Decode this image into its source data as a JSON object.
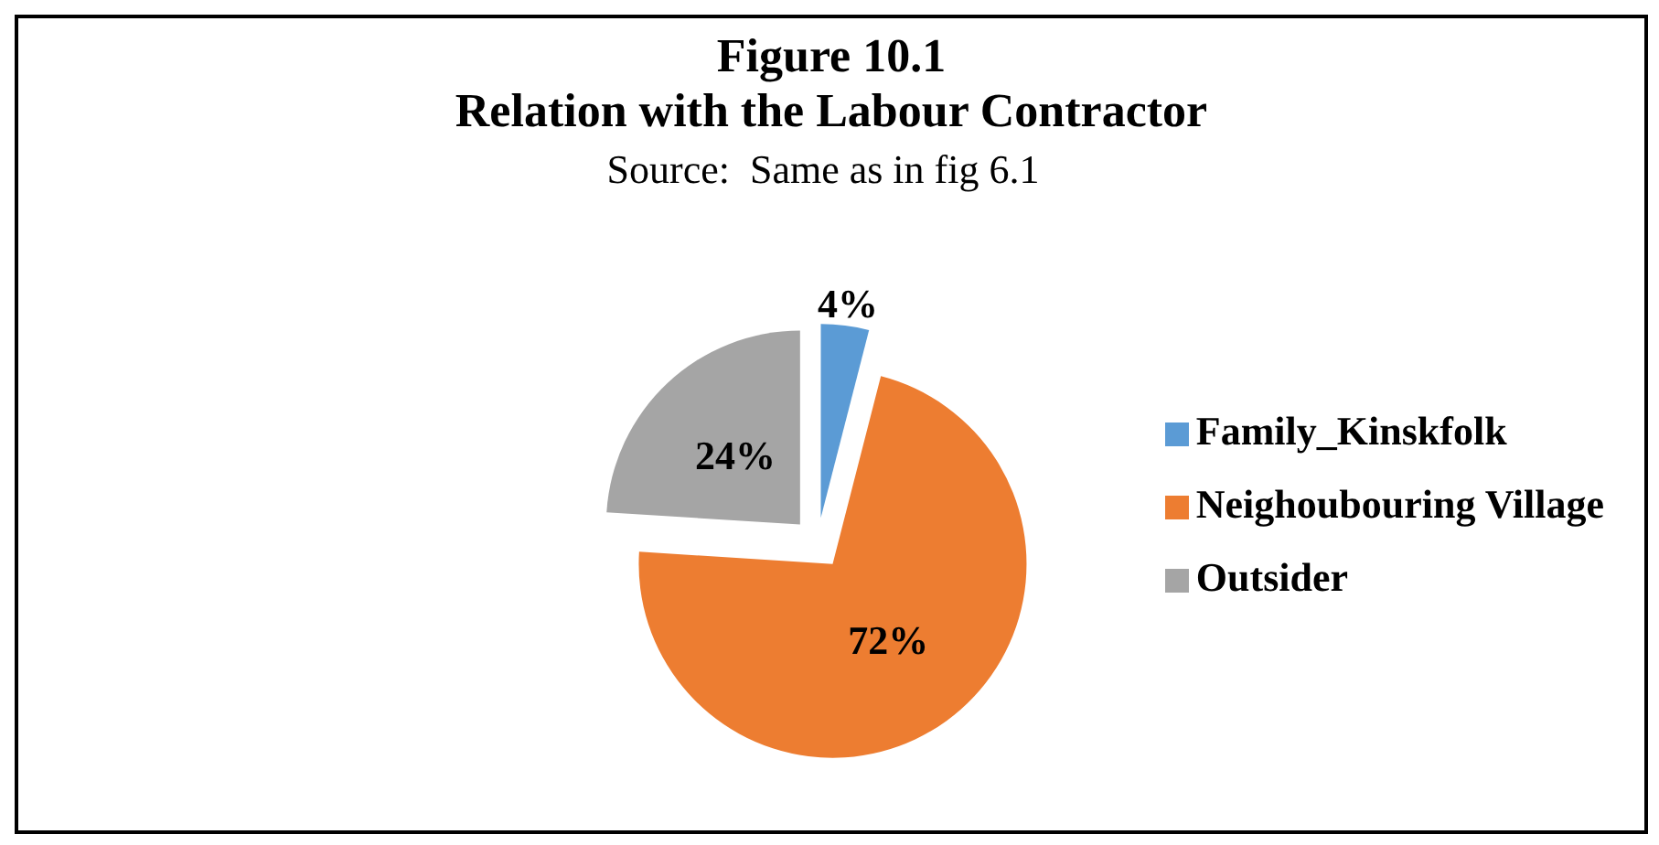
{
  "chart_data": {
    "type": "pie",
    "title": "Figure 10.1",
    "subtitle": "Relation with the Labour Contractor",
    "annotations": [
      "Source:  Same as in fig 6.1"
    ],
    "categories": [
      "Family_Kinskfolk",
      "Neighoubouring Village",
      "Outsider"
    ],
    "values": [
      4,
      72,
      24
    ],
    "colors": [
      "#5b9bd5",
      "#ed7d31",
      "#a5a5a5"
    ],
    "value_labels": [
      "4%",
      "72%",
      "24%"
    ],
    "legend": "right"
  }
}
